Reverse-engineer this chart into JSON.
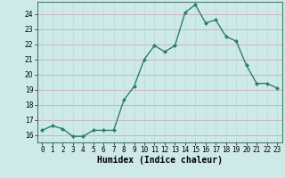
{
  "xlabel": "Humidex (Indice chaleur)",
  "x": [
    0,
    1,
    2,
    3,
    4,
    5,
    6,
    7,
    8,
    9,
    10,
    11,
    12,
    13,
    14,
    15,
    16,
    17,
    18,
    19,
    20,
    21,
    22,
    23
  ],
  "y": [
    16.3,
    16.6,
    16.4,
    15.9,
    15.9,
    16.3,
    16.3,
    16.3,
    18.3,
    19.2,
    21.0,
    21.9,
    21.5,
    21.9,
    24.1,
    24.6,
    23.4,
    23.6,
    22.5,
    22.2,
    20.6,
    19.4,
    19.4,
    19.1
  ],
  "line_color": "#2e7d6e",
  "marker": "D",
  "marker_size": 2.0,
  "line_width": 1.0,
  "bg_color": "#ceeae8",
  "grid_color_major": "#c8a0a0",
  "grid_color_minor": "#b8d8d8",
  "ylim": [
    15.5,
    24.8
  ],
  "xlim": [
    -0.5,
    23.5
  ],
  "yticks": [
    16,
    17,
    18,
    19,
    20,
    21,
    22,
    23,
    24
  ],
  "xtick_labels": [
    "0",
    "1",
    "2",
    "3",
    "4",
    "5",
    "6",
    "7",
    "8",
    "9",
    "10",
    "11",
    "12",
    "13",
    "14",
    "15",
    "16",
    "17",
    "18",
    "19",
    "20",
    "21",
    "22",
    "23"
  ],
  "axis_fontsize": 6.5,
  "tick_fontsize": 5.5,
  "xlabel_fontsize": 7,
  "spine_color": "#4a7a70"
}
